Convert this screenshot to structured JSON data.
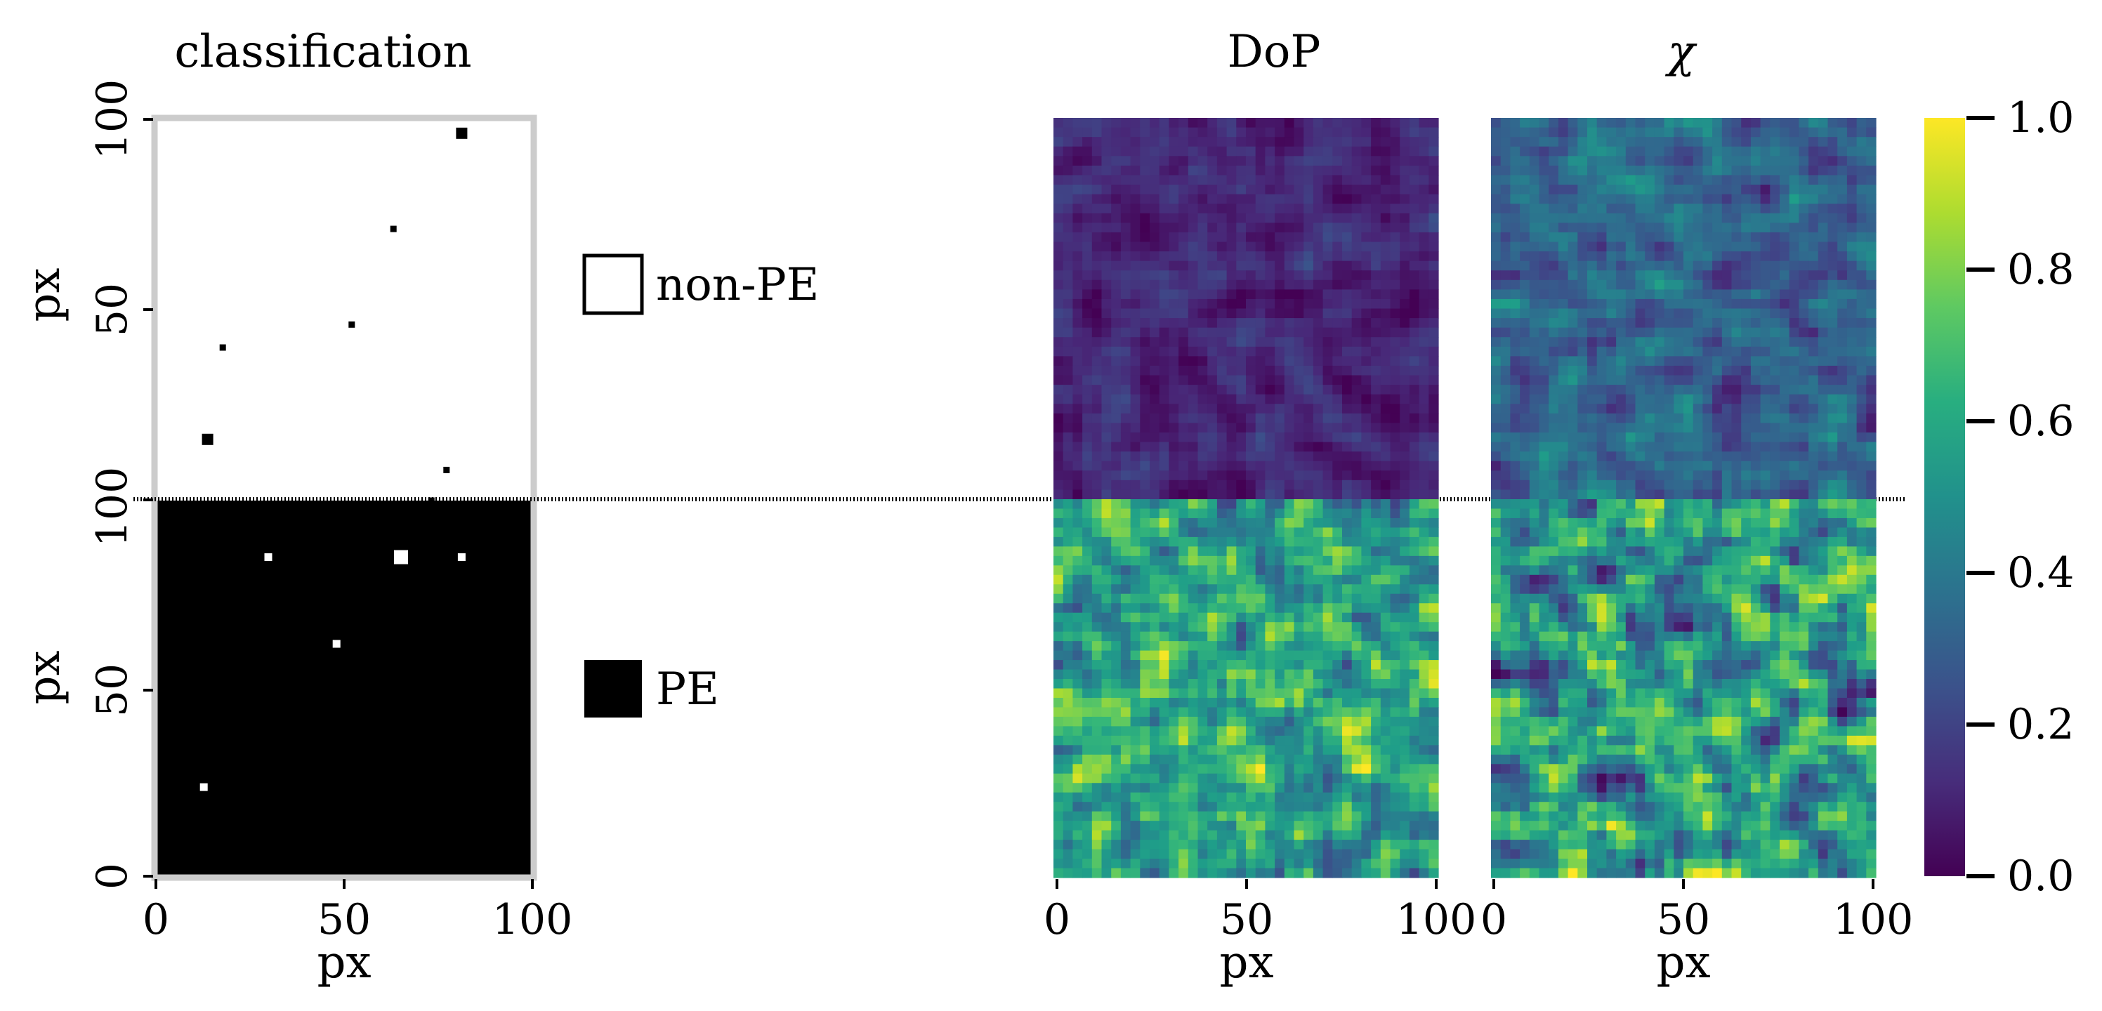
{
  "chart_data": [
    {
      "type": "heatmap",
      "title": "classification",
      "xlabel": "px",
      "ylabel": "px",
      "xlim": [
        0,
        100
      ],
      "ylim": [
        0,
        100
      ],
      "xticks": [
        "0",
        "50",
        "100"
      ],
      "yticks_top": [
        "100",
        "50",
        "0"
      ],
      "yticks_bottom": [
        "100",
        "50",
        "0"
      ],
      "split_marker": "100",
      "legend": [
        {
          "label": "non-PE",
          "color": "#ffffff"
        },
        {
          "label": "PE",
          "color": "#000000"
        }
      ],
      "top_region_class": "non-PE",
      "bottom_region_class": "PE",
      "top_outliers": [
        [
          63,
          71
        ],
        [
          52,
          46
        ],
        [
          18,
          40
        ],
        [
          14,
          16
        ],
        [
          77,
          8
        ],
        [
          73,
          0
        ],
        [
          81,
          96
        ]
      ],
      "bottom_outliers": [
        [
          30,
          85
        ],
        [
          65,
          85
        ],
        [
          81,
          85
        ],
        [
          48,
          62
        ],
        [
          13,
          24
        ]
      ]
    },
    {
      "type": "heatmap",
      "title": "DoP",
      "xlabel": "px",
      "xlim": [
        0,
        100
      ],
      "xticks": [
        "0",
        "50",
        "100"
      ],
      "colormap": "viridis",
      "top_region_mean": 0.12,
      "bottom_region_mean": 0.62
    },
    {
      "type": "heatmap",
      "title": "χ",
      "xlabel": "px",
      "xlim": [
        0,
        100
      ],
      "xticks": [
        "0",
        "50",
        "100"
      ],
      "colormap": "viridis",
      "top_region_mean": 0.32,
      "bottom_region_mean": 0.45
    }
  ],
  "colorbar": {
    "range": [
      0.0,
      1.0
    ],
    "ticks": [
      "1.0",
      "0.8",
      "0.6",
      "0.4",
      "0.2",
      "0.0"
    ],
    "colormap": "viridis"
  }
}
